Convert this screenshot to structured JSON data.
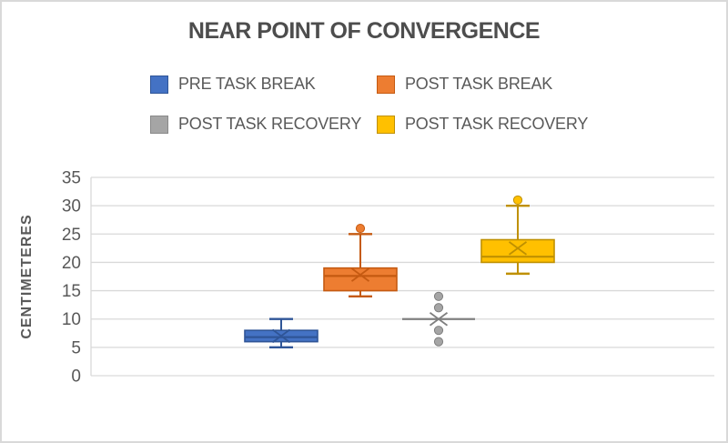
{
  "title": "NEAR POINT OF CONVERGENCE",
  "colors": {
    "text": "#595959",
    "title_text": "#4d4d4d",
    "gridline": "#d9d9d9",
    "background": "#ffffff",
    "frame_border": "#d9d9d9"
  },
  "legend": {
    "position": "top",
    "items": [
      {
        "label": "PRE TASK BREAK",
        "fill": "#4472C4",
        "stroke": "#2F5597"
      },
      {
        "label": "POST TASK BREAK",
        "fill": "#ED7D31",
        "stroke": "#C55A11"
      },
      {
        "label": "POST TASK RECOVERY",
        "fill": "#A5A5A5",
        "stroke": "#898989"
      },
      {
        "label": "POST TASK RECOVERY",
        "fill": "#FFC000",
        "stroke": "#BF9000"
      }
    ]
  },
  "chart_data": {
    "type": "boxplot",
    "title": "NEAR POINT OF CONVERGENCE",
    "xlabel": "",
    "ylabel": "CENTIMETERES",
    "ylim": [
      0,
      35
    ],
    "yticks": [
      0,
      5,
      10,
      15,
      20,
      25,
      30,
      35
    ],
    "grid": true,
    "legend_position": "top",
    "series": [
      {
        "name": "PRE TASK BREAK",
        "fill": "#4472C4",
        "stroke": "#2F5597",
        "whisker_low": 5,
        "q1": 6,
        "median": 6.8,
        "q3": 8,
        "whisker_high": 10,
        "mean": 7,
        "outliers": []
      },
      {
        "name": "POST TASK BREAK",
        "fill": "#ED7D31",
        "stroke": "#C55A11",
        "whisker_low": 14,
        "q1": 15,
        "median": 17.6,
        "q3": 19,
        "whisker_high": 25,
        "mean": 17.8,
        "outliers": [
          26
        ]
      },
      {
        "name": "POST TASK RECOVERY",
        "fill": "#A5A5A5",
        "stroke": "#7F7F7F",
        "whisker_low": 10,
        "q1": 10,
        "median": 10,
        "q3": 10,
        "whisker_high": 10,
        "mean": 10,
        "outliers": [
          14,
          12,
          8,
          6
        ]
      },
      {
        "name": "POST TASK RECOVERY",
        "fill": "#FFC000",
        "stroke": "#BF9000",
        "whisker_low": 18,
        "q1": 20,
        "median": 21,
        "q3": 24,
        "whisker_high": 30,
        "mean": 22.5,
        "outliers": [
          31
        ]
      }
    ]
  }
}
